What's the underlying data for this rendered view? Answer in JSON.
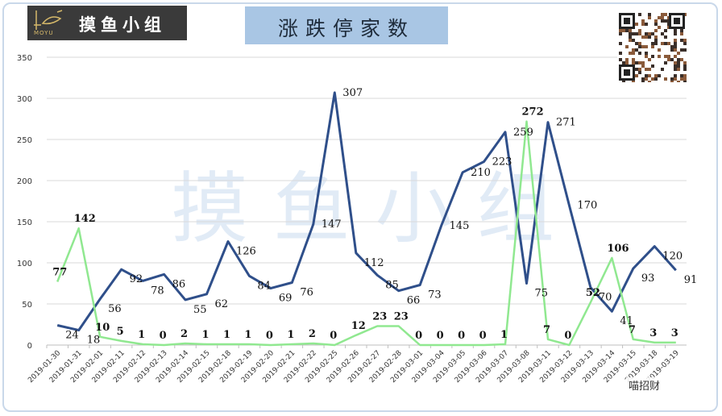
{
  "logo": {
    "text": "摸鱼小组",
    "sub": "MOYU"
  },
  "title": "涨跌停家数",
  "watermark": "摸 鱼 小 组",
  "brand": "喵招财",
  "colors": {
    "series1": "#2f4f8a",
    "series2": "#90e890",
    "title_bg": "#a9c6e4"
  },
  "chart_data": {
    "type": "line",
    "title": "涨跌停家数",
    "categories": [
      "2019-01-30",
      "2019-01-31",
      "2019-02-01",
      "2019-02-11",
      "2019-02-12",
      "2019-02-13",
      "2019-02-14",
      "2019-02-15",
      "2019-02-18",
      "2019-02-19",
      "2019-02-20",
      "2019-02-21",
      "2019-02-22",
      "2019-02-25",
      "2019-02-26",
      "2019-02-27",
      "2019-02-28",
      "2019-03-01",
      "2019-03-04",
      "2019-03-05",
      "2019-03-06",
      "2019-03-07",
      "2019-03-08",
      "2019-03-11",
      "2019-03-12",
      "2019-03-13",
      "2019-03-14",
      "2019-03-15",
      "2019-03-18",
      "2019-03-19"
    ],
    "series": [
      {
        "color": "#2f4f8a",
        "values": [
          24,
          18,
          56,
          92,
          78,
          86,
          55,
          62,
          126,
          84,
          69,
          76,
          147,
          307,
          112,
          85,
          66,
          73,
          145,
          210,
          223,
          259,
          75,
          271,
          170,
          70,
          41,
          93,
          120,
          91
        ]
      },
      {
        "color": "#90e890",
        "values": [
          77,
          142,
          10,
          5,
          1,
          0,
          2,
          1,
          1,
          1,
          0,
          1,
          2,
          0,
          12,
          23,
          23,
          0,
          0,
          0,
          0,
          1,
          272,
          7,
          0,
          52,
          106,
          7,
          3,
          3
        ]
      }
    ],
    "ylim": [
      0,
      350
    ],
    "yticks": [
      0,
      50,
      100,
      150,
      200,
      250,
      300,
      350
    ],
    "grid": true,
    "legend": "none"
  }
}
